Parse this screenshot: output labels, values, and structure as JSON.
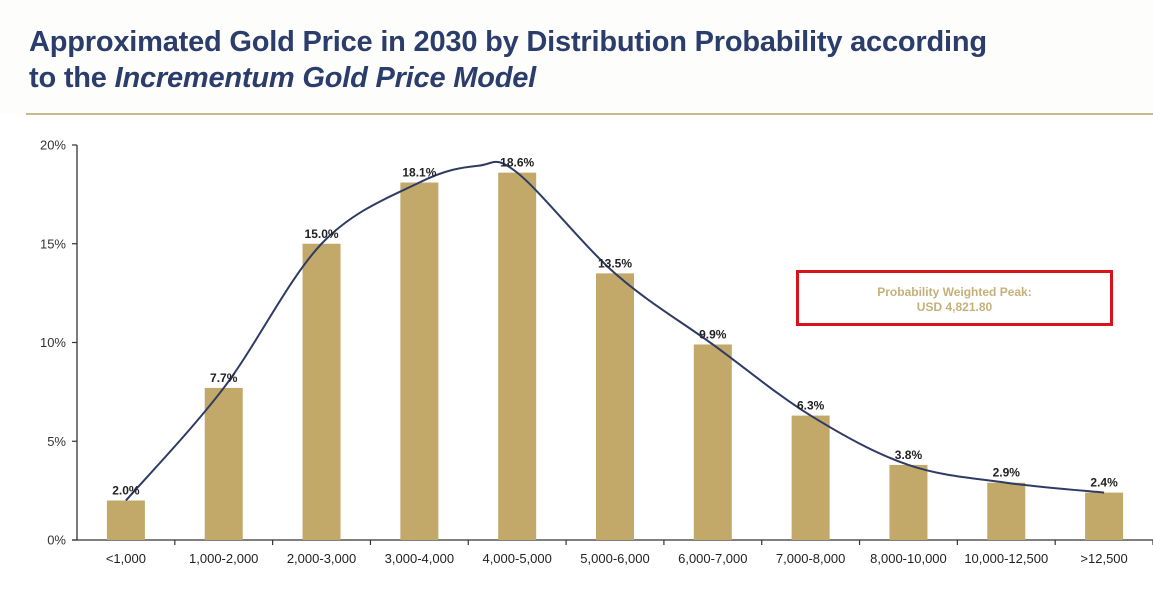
{
  "title": {
    "line1": "Approximated Gold Price in 2030 by Distribution Probability according",
    "line2_prefix": "to the ",
    "line2_italic": "Incrementum Gold Price Model"
  },
  "callout": {
    "line1": "Probability Weighted Peak:",
    "line2": "USD 4,821.80",
    "border_color": "#d8141a",
    "text_color": "#c6b07a"
  },
  "colors": {
    "bar": "#c2a869",
    "curve": "#2e3b66",
    "title": "#2b3d6b"
  },
  "chart_data": {
    "type": "bar",
    "title": "Approximated Gold Price in 2030 by Distribution Probability according to the Incrementum Gold Price Model",
    "xlabel": "",
    "ylabel": "",
    "ylim": [
      0,
      20
    ],
    "yticks": [
      0,
      5,
      10,
      15,
      20
    ],
    "ytick_labels": [
      "0%",
      "5%",
      "10%",
      "15%",
      "20%"
    ],
    "categories": [
      "<1,000",
      "1,000-2,000",
      "2,000-3,000",
      "3,000-4,000",
      "4,000-5,000",
      "5,000-6,000",
      "6,000-7,000",
      "7,000-8,000",
      "8,000-10,000",
      "10,000-12,500",
      ">12,500"
    ],
    "values": [
      2.0,
      7.7,
      15.0,
      18.1,
      18.6,
      13.5,
      9.9,
      6.3,
      3.8,
      2.9,
      2.4
    ],
    "data_labels": [
      "2.0%",
      "7.7%",
      "15.0%",
      "18.1%",
      "18.6%",
      "13.5%",
      "9.9%",
      "6.3%",
      "3.8%",
      "2.9%",
      "2.4%"
    ],
    "overlay": {
      "type": "smoothed-line",
      "through": "bar values"
    },
    "grid": false,
    "legend": "none"
  }
}
